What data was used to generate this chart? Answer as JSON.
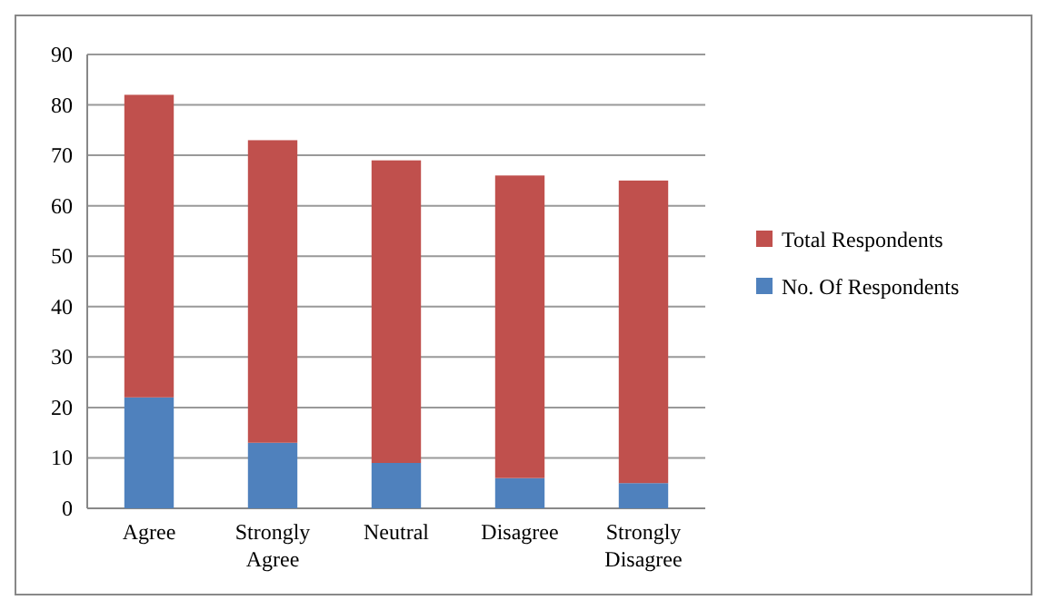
{
  "chart_data": {
    "type": "bar",
    "stacked": true,
    "categories": [
      "Agree",
      "Strongly Agree",
      "Neutral",
      "Disagree",
      "Strongly Disagree"
    ],
    "series": [
      {
        "name": "No. Of Respondents",
        "color": "#4f81bd",
        "values": [
          22,
          13,
          9,
          6,
          5
        ]
      },
      {
        "name": "Total Respondents",
        "color": "#c0504d",
        "values": [
          60,
          60,
          60,
          60,
          60
        ]
      }
    ],
    "ylim": [
      0,
      90
    ],
    "yticks": [
      0,
      10,
      20,
      30,
      40,
      50,
      60,
      70,
      80,
      90
    ],
    "grid": "y",
    "legend": "right"
  }
}
